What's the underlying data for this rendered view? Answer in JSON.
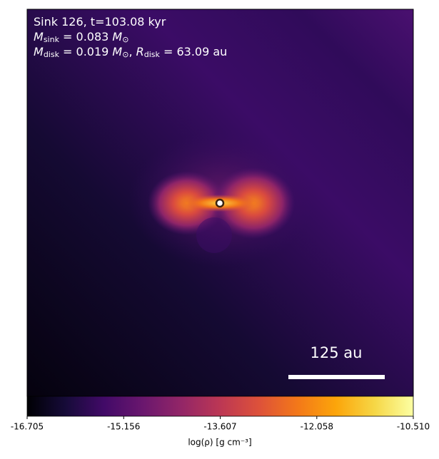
{
  "chart_data": {
    "type": "density-map",
    "annotation_lines": [
      [
        {
          "text": "Sink 126, t=103.08 kyr",
          "style": "normal"
        }
      ],
      [
        {
          "text": "M",
          "style": "italic"
        },
        {
          "text": "sink",
          "style": "sub"
        },
        {
          "text": " = 0.083 ",
          "style": "normal"
        },
        {
          "text": "M",
          "style": "italic"
        },
        {
          "text": "⊙",
          "style": "sub"
        }
      ],
      [
        {
          "text": "M",
          "style": "italic"
        },
        {
          "text": "disk",
          "style": "sub"
        },
        {
          "text": " = 0.019 ",
          "style": "normal"
        },
        {
          "text": "M",
          "style": "italic"
        },
        {
          "text": "⊙",
          "style": "sub"
        },
        {
          "text": ", ",
          "style": "normal"
        },
        {
          "text": "R",
          "style": "italic"
        },
        {
          "text": "disk",
          "style": "sub"
        },
        {
          "text": " = 63.09 au",
          "style": "normal"
        }
      ]
    ],
    "scale_bar_label": "125 au",
    "colorbar": {
      "label": "log(ρ) [g cm⁻³]",
      "xlim": [
        -16.705,
        -10.51
      ],
      "xticks": [
        -16.705,
        -15.156,
        -13.607,
        -12.058,
        {
          "value": -10.51,
          "label": "-10.510"
        }
      ],
      "colormap": [
        "#000004",
        "#160b39",
        "#420a68",
        "#6a176e",
        "#932667",
        "#bc3754",
        "#dd513a",
        "#f37819",
        "#fca50a",
        "#f6d746",
        "#fcffa4"
      ]
    }
  }
}
